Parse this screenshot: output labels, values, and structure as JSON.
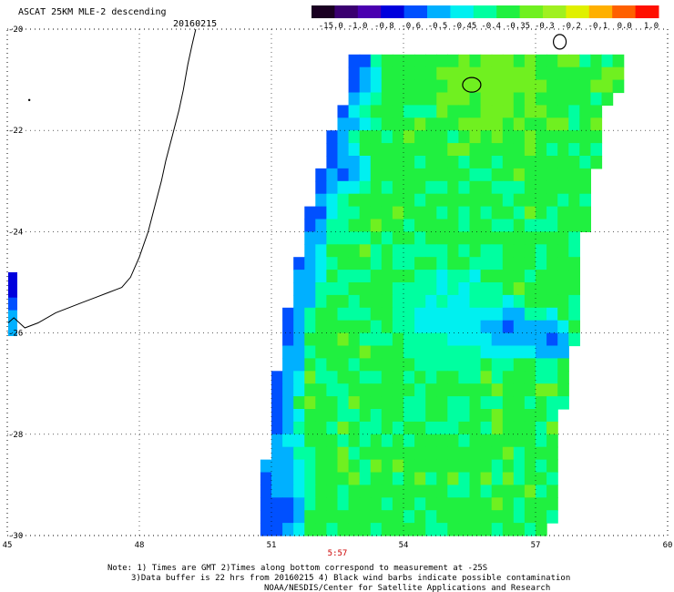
{
  "chart_data": {
    "type": "heatmap",
    "title": "ASCAT 25KM MLE-2 descending",
    "date": "20160215",
    "x": {
      "ticks": [
        45,
        48,
        51,
        54,
        57,
        60
      ],
      "range": [
        45,
        60
      ]
    },
    "y": {
      "ticks": [
        -20,
        -22,
        -24,
        -26,
        -28,
        -30
      ],
      "range": [
        -30,
        -20
      ]
    },
    "grid": "dotted",
    "colorbar": {
      "position": "top-right",
      "labels": [
        "-15.0",
        "-1.0",
        "-0.8",
        "-0.6",
        "-0.5",
        "-0.45",
        "-0.4",
        "-0.35",
        "-0.3",
        "-0.2",
        "-0.1",
        "0.0",
        "1.0"
      ],
      "colors": [
        "#1a0022",
        "#3a0070",
        "#4a00b0",
        "#0000dd",
        "#0050ff",
        "#00b0ff",
        "#00f0f0",
        "#00ffa0",
        "#20f040",
        "#70f020",
        "#a0f020",
        "#e0f000",
        "#ffb000",
        "#ff6000",
        "#ff1000"
      ]
    },
    "time_labels": [
      {
        "lon": 52.5,
        "text": "5:57"
      }
    ],
    "notes": [
      "Note: 1) Times are GMT 2)Times along bottom correspond to measurement at -25S",
      "3)Data buffer is 22 hrs from 20160215 4) Black wind barbs indicate possible contamination",
      "NOAA/NESDIS/Center for Satellite Applications and Research"
    ],
    "swath_edges": [
      [
        -20.5,
        52.9,
        58.9
      ],
      [
        -21.0,
        52.8,
        58.9
      ],
      [
        -21.5,
        52.6,
        58.4
      ],
      [
        -22.0,
        52.4,
        58.4
      ],
      [
        -22.5,
        52.2,
        58.4
      ],
      [
        -23.0,
        52.0,
        58.2
      ],
      [
        -23.5,
        51.9,
        58.2
      ],
      [
        -24.0,
        51.8,
        58.0
      ],
      [
        -24.5,
        51.6,
        58.0
      ],
      [
        -25.0,
        51.5,
        57.9
      ],
      [
        -25.5,
        51.4,
        57.8
      ],
      [
        -26.0,
        51.3,
        57.8
      ],
      [
        -26.5,
        51.2,
        57.7
      ],
      [
        -27.0,
        51.1,
        57.6
      ],
      [
        -27.5,
        51.0,
        57.5
      ],
      [
        -28.0,
        51.0,
        57.4
      ],
      [
        -28.5,
        50.9,
        57.4
      ],
      [
        -29.0,
        50.8,
        57.3
      ],
      [
        -29.5,
        50.8,
        57.3
      ],
      [
        -30.0,
        50.7,
        57.2
      ]
    ],
    "field_features": [
      {
        "lat": -25.8,
        "lon": 56.2,
        "radius": 0.8,
        "value": -0.62
      },
      {
        "lat": -26.0,
        "lon": 57.2,
        "radius": 0.6,
        "value": -0.64
      },
      {
        "lat": -25.6,
        "lon": 55.0,
        "radius": 1.5,
        "value": -0.46
      },
      {
        "lat": -22.7,
        "lon": 52.6,
        "radius": 0.6,
        "value": -0.6
      },
      {
        "lat": -29.5,
        "lon": 51.0,
        "radius": 0.8,
        "value": -0.65
      },
      {
        "lat": -28.5,
        "lon": 51.2,
        "radius": 0.8,
        "value": -0.5
      },
      {
        "lat": -24.8,
        "lon": 51.6,
        "radius": 0.5,
        "value": -0.5
      },
      {
        "lat": -21.0,
        "lon": 56.0,
        "radius": 2.0,
        "value": -0.3
      }
    ],
    "background_value": -0.36
  }
}
